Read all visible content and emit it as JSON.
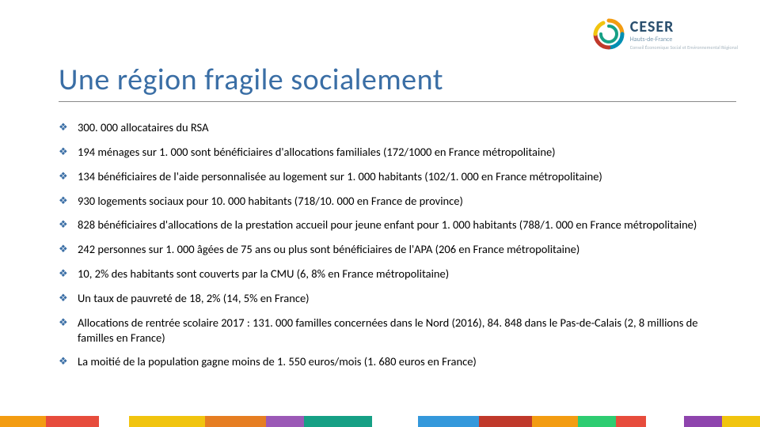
{
  "logo": {
    "brand": "CESER",
    "subtitle": "Hauts-de-France",
    "tagline": "Conseil Économique Social et Environnemental Régional",
    "swirl_colors": [
      "#f39c12",
      "#008fb3",
      "#c0392b"
    ]
  },
  "title": {
    "text": "Une région fragile socialement",
    "color": "#3a6ea5",
    "fontsize": 38
  },
  "bullets_style": {
    "marker_glyph": "❖",
    "marker_color": "#3a6ea5",
    "fontsize": 14.5
  },
  "bullets": [
    "300. 000 allocataires du RSA",
    "194 ménages sur 1. 000 sont bénéficiaires d'allocations familiales  (172/1000 en France métropolitaine)",
    "134 bénéficiaires de l'aide personnalisée au logement sur 1. 000 habitants (102/1. 000 en France métropolitaine)",
    "930 logements sociaux pour 10. 000 habitants (718/10. 000 en France de province)",
    "828 bénéficiaires d'allocations de la prestation accueil pour jeune enfant pour 1. 000 habitants (788/1. 000 en France métropolitaine)",
    "242 personnes sur 1. 000 âgées de 75 ans ou plus sont bénéficiaires de l'APA (206 en France métropolitaine)",
    "10, 2% des habitants sont couverts par la CMU (6, 8% en France métropolitaine)",
    "Un taux de pauvreté de 18, 2% (14, 5% en France)",
    "Allocations de rentrée scolaire 2017 : 131. 000 familles concernées dans le Nord (2016), 84. 848 dans le Pas-de-Calais (2, 8 millions de familles en France)",
    "La moitié de la population gagne moins de 1. 550 euros/mois (1. 680 euros en France)"
  ],
  "bottom_bar": {
    "segments": [
      {
        "color": "#f39c12",
        "width_pct": 6
      },
      {
        "color": "#e74c3c",
        "width_pct": 7
      },
      {
        "color": "#ffffff",
        "width_pct": 4
      },
      {
        "color": "#f1c40f",
        "width_pct": 10
      },
      {
        "color": "#e67e22",
        "width_pct": 8
      },
      {
        "color": "#9b59b6",
        "width_pct": 5
      },
      {
        "color": "#16a085",
        "width_pct": 9
      },
      {
        "color": "#ffffff",
        "width_pct": 6
      },
      {
        "color": "#3498db",
        "width_pct": 8
      },
      {
        "color": "#c0392b",
        "width_pct": 7
      },
      {
        "color": "#f39c12",
        "width_pct": 6
      },
      {
        "color": "#2ecc71",
        "width_pct": 5
      },
      {
        "color": "#e74c3c",
        "width_pct": 4
      },
      {
        "color": "#ffffff",
        "width_pct": 5
      },
      {
        "color": "#8e44ad",
        "width_pct": 5
      },
      {
        "color": "#f1c40f",
        "width_pct": 5
      }
    ]
  }
}
